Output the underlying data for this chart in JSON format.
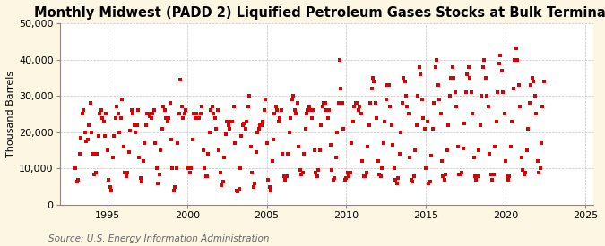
{
  "title": "Monthly Midwest (PADD 2) Liquified Petroleum Gases Stocks at Bulk Terminals",
  "ylabel": "Thousand Barrels",
  "source": "Source: U.S. Energy Information Administration",
  "xlim": [
    1992.0,
    2025.5
  ],
  "ylim": [
    0,
    50000
  ],
  "yticks": [
    0,
    10000,
    20000,
    30000,
    40000,
    50000
  ],
  "xticks": [
    1995,
    2000,
    2005,
    2010,
    2015,
    2020,
    2025
  ],
  "background_color": "#fdf6e3",
  "plot_bg_color": "#ffffff",
  "marker_color": "#dd0000",
  "marker": "s",
  "marker_size": 3.5,
  "title_fontsize": 10.5,
  "label_fontsize": 8,
  "tick_fontsize": 8,
  "source_fontsize": 7.5,
  "data_x": [
    1993.0,
    1993.083,
    1993.167,
    1993.25,
    1993.333,
    1993.417,
    1993.5,
    1993.583,
    1993.667,
    1993.75,
    1993.833,
    1993.917,
    1994.0,
    1994.083,
    1994.167,
    1994.25,
    1994.333,
    1994.417,
    1994.5,
    1994.583,
    1994.667,
    1994.75,
    1994.833,
    1994.917,
    1995.0,
    1995.083,
    1995.167,
    1995.25,
    1995.333,
    1995.417,
    1995.5,
    1995.583,
    1995.667,
    1995.75,
    1995.833,
    1995.917,
    1996.0,
    1996.083,
    1996.167,
    1996.25,
    1996.333,
    1996.417,
    1996.5,
    1996.583,
    1996.667,
    1996.75,
    1996.833,
    1996.917,
    1997.0,
    1997.083,
    1997.167,
    1997.25,
    1997.333,
    1997.417,
    1997.5,
    1997.583,
    1997.667,
    1997.75,
    1997.833,
    1997.917,
    1998.0,
    1998.083,
    1998.167,
    1998.25,
    1998.333,
    1998.417,
    1998.5,
    1998.583,
    1998.667,
    1998.75,
    1998.833,
    1998.917,
    1999.0,
    1999.083,
    1999.167,
    1999.25,
    1999.333,
    1999.417,
    1999.5,
    1999.583,
    1999.667,
    1999.75,
    1999.833,
    1999.917,
    2000.0,
    2000.083,
    2000.167,
    2000.25,
    2000.333,
    2000.417,
    2000.5,
    2000.583,
    2000.667,
    2000.75,
    2000.833,
    2000.917,
    2001.0,
    2001.083,
    2001.167,
    2001.25,
    2001.333,
    2001.417,
    2001.5,
    2001.583,
    2001.667,
    2001.75,
    2001.833,
    2001.917,
    2002.0,
    2002.083,
    2002.167,
    2002.25,
    2002.333,
    2002.417,
    2002.5,
    2002.583,
    2002.667,
    2002.75,
    2002.833,
    2002.917,
    2003.0,
    2003.083,
    2003.167,
    2003.25,
    2003.333,
    2003.417,
    2003.5,
    2003.583,
    2003.667,
    2003.75,
    2003.833,
    2003.917,
    2004.0,
    2004.083,
    2004.167,
    2004.25,
    2004.333,
    2004.417,
    2004.5,
    2004.583,
    2004.667,
    2004.75,
    2004.833,
    2004.917,
    2005.0,
    2005.083,
    2005.167,
    2005.25,
    2005.333,
    2005.417,
    2005.5,
    2005.583,
    2005.667,
    2005.75,
    2005.833,
    2005.917,
    2006.0,
    2006.083,
    2006.167,
    2006.25,
    2006.333,
    2006.417,
    2006.5,
    2006.583,
    2006.667,
    2006.75,
    2006.833,
    2006.917,
    2007.0,
    2007.083,
    2007.167,
    2007.25,
    2007.333,
    2007.417,
    2007.5,
    2007.583,
    2007.667,
    2007.75,
    2007.833,
    2007.917,
    2008.0,
    2008.083,
    2008.167,
    2008.25,
    2008.333,
    2008.417,
    2008.5,
    2008.583,
    2008.667,
    2008.75,
    2008.833,
    2008.917,
    2009.0,
    2009.083,
    2009.167,
    2009.25,
    2009.333,
    2009.417,
    2009.5,
    2009.583,
    2009.667,
    2009.75,
    2009.833,
    2009.917,
    2010.0,
    2010.083,
    2010.167,
    2010.25,
    2010.333,
    2010.417,
    2010.5,
    2010.583,
    2010.667,
    2010.75,
    2010.833,
    2010.917,
    2011.0,
    2011.083,
    2011.167,
    2011.25,
    2011.333,
    2011.417,
    2011.5,
    2011.583,
    2011.667,
    2011.75,
    2011.833,
    2011.917,
    2012.0,
    2012.083,
    2012.167,
    2012.25,
    2012.333,
    2012.417,
    2012.5,
    2012.583,
    2012.667,
    2012.75,
    2012.833,
    2012.917,
    2013.0,
    2013.083,
    2013.167,
    2013.25,
    2013.333,
    2013.417,
    2013.5,
    2013.583,
    2013.667,
    2013.75,
    2013.833,
    2013.917,
    2014.0,
    2014.083,
    2014.167,
    2014.25,
    2014.333,
    2014.417,
    2014.5,
    2014.583,
    2014.667,
    2014.75,
    2014.833,
    2014.917,
    2015.0,
    2015.083,
    2015.167,
    2015.25,
    2015.333,
    2015.417,
    2015.5,
    2015.583,
    2015.667,
    2015.75,
    2015.833,
    2015.917,
    2016.0,
    2016.083,
    2016.167,
    2016.25,
    2016.333,
    2016.417,
    2016.5,
    2016.583,
    2016.667,
    2016.75,
    2016.833,
    2016.917,
    2017.0,
    2017.083,
    2017.167,
    2017.25,
    2017.333,
    2017.417,
    2017.5,
    2017.583,
    2017.667,
    2017.75,
    2017.833,
    2017.917,
    2018.0,
    2018.083,
    2018.167,
    2018.25,
    2018.333,
    2018.417,
    2018.5,
    2018.583,
    2018.667,
    2018.75,
    2018.833,
    2018.917,
    2019.0,
    2019.083,
    2019.167,
    2019.25,
    2019.333,
    2019.417,
    2019.5,
    2019.583,
    2019.667,
    2019.75,
    2019.833,
    2019.917,
    2020.0,
    2020.083,
    2020.167,
    2020.25,
    2020.333,
    2020.417,
    2020.5,
    2020.583,
    2020.667,
    2020.75,
    2020.833,
    2020.917,
    2021.0,
    2021.083,
    2021.167,
    2021.25,
    2021.333,
    2021.417,
    2021.5,
    2021.583,
    2021.667,
    2021.75,
    2021.833,
    2021.917,
    2022.0,
    2022.083,
    2022.167,
    2022.25,
    2022.333,
    2022.417
  ],
  "data_y": [
    10000,
    6500,
    7000,
    14000,
    18500,
    25000,
    26000,
    20000,
    17500,
    18000,
    22000,
    28000,
    20000,
    14000,
    8500,
    9000,
    14000,
    19000,
    25000,
    26000,
    24000,
    23000,
    19000,
    25000,
    15000,
    7000,
    5000,
    4000,
    13000,
    19000,
    24000,
    27000,
    25000,
    20000,
    24000,
    29000,
    16000,
    9000,
    8000,
    9000,
    14500,
    20500,
    26000,
    25000,
    22000,
    20000,
    22000,
    26000,
    13000,
    7500,
    6500,
    12000,
    17000,
    22000,
    25000,
    25000,
    24500,
    24000,
    25000,
    26000,
    17000,
    10000,
    6000,
    8500,
    15000,
    21000,
    27000,
    26000,
    24000,
    23000,
    24000,
    28000,
    18000,
    10000,
    4000,
    5000,
    10000,
    17000,
    25000,
    34500,
    27000,
    24000,
    25000,
    26000,
    10000,
    10000,
    9000,
    10000,
    18000,
    25000,
    24000,
    25000,
    24000,
    24000,
    25000,
    27000,
    15000,
    10000,
    8000,
    8000,
    14000,
    20000,
    26000,
    27000,
    25000,
    24000,
    21000,
    26000,
    15000,
    9000,
    5500,
    6500,
    13000,
    19500,
    23000,
    22000,
    21000,
    23000,
    23000,
    27000,
    17000,
    4000,
    3800,
    4500,
    10000,
    19000,
    22000,
    22500,
    21000,
    23000,
    27000,
    30000,
    16000,
    9000,
    5000,
    6000,
    14500,
    20000,
    21000,
    22000,
    22000,
    23000,
    26000,
    29000,
    17000,
    6800,
    5000,
    4000,
    12000,
    18000,
    25000,
    27000,
    26000,
    23000,
    24000,
    26000,
    14000,
    7800,
    7000,
    8000,
    14000,
    20000,
    24000,
    29000,
    30000,
    26000,
    25000,
    28000,
    16000,
    9500,
    8500,
    9000,
    14000,
    21000,
    25000,
    26000,
    27000,
    26000,
    24000,
    26000,
    15000,
    9000,
    8000,
    9500,
    15000,
    22000,
    27000,
    28000,
    28000,
    26000,
    24000,
    26000,
    16500,
    9500,
    7000,
    7500,
    13000,
    20000,
    28000,
    40000,
    32000,
    28000,
    21000,
    7000,
    7500,
    9000,
    8000,
    9000,
    17000,
    23000,
    27000,
    28000,
    28000,
    26000,
    27000,
    25000,
    12000,
    8000,
    8000,
    9000,
    16000,
    22000,
    28000,
    32000,
    35000,
    34000,
    28000,
    24000,
    12000,
    8500,
    8000,
    10000,
    17000,
    23000,
    29000,
    33000,
    33000,
    27000,
    22000,
    16500,
    10000,
    7000,
    6000,
    7500,
    14000,
    20000,
    28000,
    35000,
    34000,
    30000,
    27000,
    25000,
    13000,
    7000,
    6500,
    8000,
    15000,
    22000,
    30000,
    38000,
    36000,
    29000,
    24000,
    21000,
    10000,
    23000,
    6000,
    6500,
    13500,
    21000,
    28000,
    38000,
    40000,
    33000,
    29000,
    25000,
    12000,
    8000,
    7000,
    8500,
    15000,
    22000,
    30000,
    35000,
    38000,
    35000,
    31000,
    27000,
    16000,
    8500,
    8500,
    9000,
    15500,
    22500,
    31000,
    36000,
    38000,
    35000,
    31000,
    25000,
    13000,
    8000,
    7000,
    8000,
    15000,
    22000,
    30000,
    38000,
    40000,
    35000,
    30000,
    27000,
    14000,
    8500,
    7000,
    8500,
    16000,
    23000,
    31000,
    39000,
    41000,
    37000,
    31000,
    25000,
    12000,
    8000,
    7000,
    8000,
    16000,
    23000,
    32000,
    40000,
    43000,
    40000,
    33000,
    27000,
    13000,
    9500,
    8500,
    9000,
    15000,
    21000,
    28000,
    33000,
    35000,
    34000,
    30000,
    25000,
    12000,
    9000,
    10000,
    17000,
    27000,
    34000
  ]
}
